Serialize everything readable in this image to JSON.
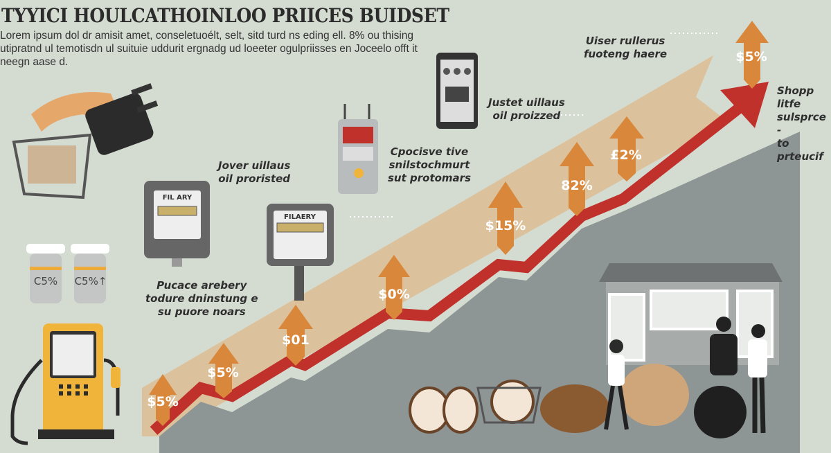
{
  "header": {
    "title": "TYYICI HOULCATHOINLOO PRIICES BUIDSET",
    "intro": "Lorem ipsum dol dr amisit amet, conseletuoélt, selt, sitd turd ns eding ell. 8% ou thising utipratnd ul temotisdn ul suituie uddurit ergnadg ud loeeter ogulpriisses en Joceelo offt it neegn aase d."
  },
  "notes": [
    {
      "text": "Jover uillaus\noil proristed"
    },
    {
      "text": "Cpocisve tive\nsnilstochmurt\nsut protomars"
    },
    {
      "text": "Justet uillaus\noil proizzed"
    },
    {
      "text": "Uiser rullerus\nfuoteng haere"
    },
    {
      "text": "Shopp litfe\nsulsprce -\nto prteucif"
    },
    {
      "text": "Pucace arebery\ntodure dninstung e\nsu puore noars"
    }
  ],
  "increase_labels": [
    "$5%",
    "$5%",
    "$01",
    "$0%",
    "$15%",
    "82%",
    "£2%",
    "$5%"
  ],
  "jars": [
    "C5%",
    "C5%↑"
  ],
  "meters": [
    "FIL ARY",
    "FILAERY"
  ],
  "colors": {
    "background": "#d4dcd2",
    "trend_red": "#c0312c",
    "arrow_orange": "#d9873a",
    "band_beige": "#dcc29c",
    "area_gray": "#8e9595",
    "pump_yellow": "#f0b43a"
  }
}
